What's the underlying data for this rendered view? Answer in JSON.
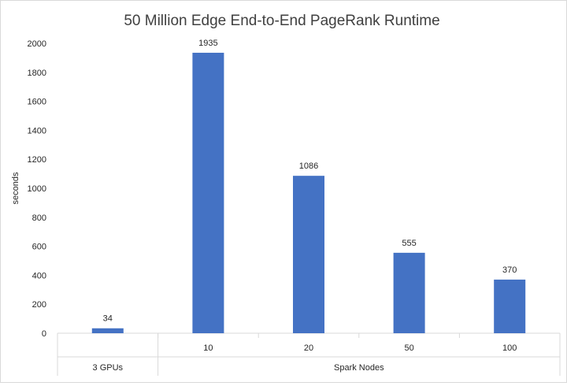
{
  "chart_data": {
    "type": "bar",
    "title": "50 Million Edge End-to-End PageRank Runtime",
    "ylabel": "seconds",
    "xlabel": "",
    "ylim": [
      0,
      2000
    ],
    "y_ticks": [
      0,
      200,
      400,
      600,
      800,
      1000,
      1200,
      1400,
      1600,
      1800,
      2000
    ],
    "categories": [
      "",
      "10",
      "20",
      "50",
      "100"
    ],
    "groups": [
      {
        "label": "3 GPUs",
        "count": 1
      },
      {
        "label": "Spark Nodes",
        "count": 4
      }
    ],
    "values": [
      34,
      1935,
      1086,
      555,
      370
    ],
    "data_labels": [
      "34",
      "1935",
      "1086",
      "555",
      "370"
    ],
    "grid": false,
    "legend": "none",
    "bar_color": "#4472c4"
  }
}
